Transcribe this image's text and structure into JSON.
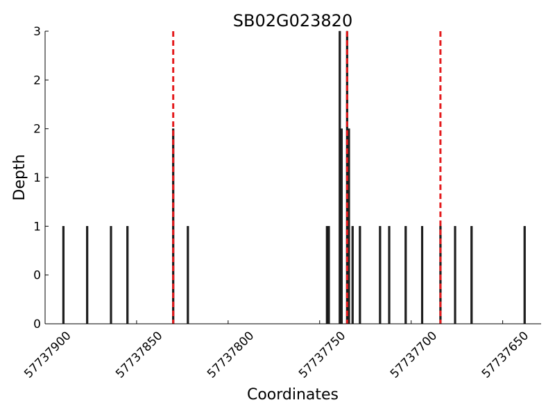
{
  "chart_data": {
    "type": "bar",
    "title": "SB02G023820",
    "xlabel": "Coordinates",
    "ylabel": "Depth",
    "x": [
      57737890,
      57737877,
      57737864,
      57737855,
      57737830,
      57737822,
      57737746,
      57737745,
      57737739,
      57737738,
      57737735,
      57737734,
      57737732,
      57737728,
      57737717,
      57737712,
      57737703,
      57737694,
      57737684,
      57737676,
      57737667,
      57737638
    ],
    "values": [
      1,
      1,
      1,
      1,
      2,
      1,
      1,
      1,
      3,
      2,
      3,
      2,
      1,
      1,
      1,
      1,
      1,
      1,
      1,
      1,
      1,
      1
    ],
    "color": "#222222",
    "vlines": [
      57737830,
      57737735,
      57737684
    ],
    "vline_color": "#e41a1c",
    "xlim": [
      57737900,
      57737629
    ],
    "xticks": [
      57737900,
      57737850,
      57737800,
      57737750,
      57737700,
      57737650
    ],
    "ylim": [
      0,
      3
    ],
    "yticks": [
      0,
      {
        "value": 0.5,
        "label": "0"
      },
      1,
      {
        "value": 1.5,
        "label": "1"
      },
      2,
      {
        "value": 2.5,
        "label": "2"
      },
      3
    ]
  }
}
